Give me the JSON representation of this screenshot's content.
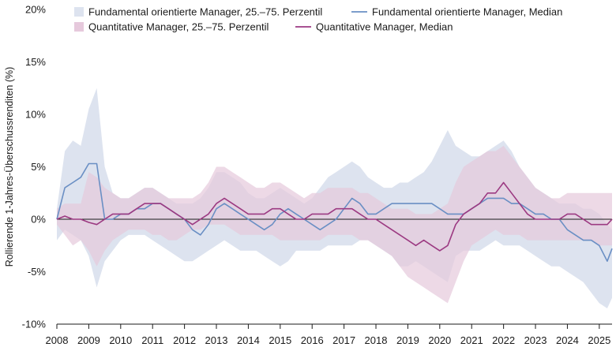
{
  "chart_data": {
    "type": "area",
    "title": "",
    "xlabel": "",
    "ylabel": "Rollierende 1-Jahres-Überschussrenditen (%)",
    "xlim": [
      2008.0,
      2025.4
    ],
    "ylim": [
      -10,
      20
    ],
    "yticks": [
      {
        "value": 20,
        "label": "20%"
      },
      {
        "value": 15,
        "label": "15%"
      },
      {
        "value": 10,
        "label": "10%"
      },
      {
        "value": 5,
        "label": "5%"
      },
      {
        "value": 0,
        "label": "0%"
      },
      {
        "value": -5,
        "label": "-5%"
      },
      {
        "value": -10,
        "label": "-10%"
      }
    ],
    "xticks": [
      {
        "value": 2008,
        "label": "2008"
      },
      {
        "value": 2009,
        "label": "2009"
      },
      {
        "value": 2010,
        "label": "2010"
      },
      {
        "value": 2011,
        "label": "2011"
      },
      {
        "value": 2012,
        "label": "2012"
      },
      {
        "value": 2013,
        "label": "2013"
      },
      {
        "value": 2014,
        "label": "2014"
      },
      {
        "value": 2015,
        "label": "2015"
      },
      {
        "value": 2016,
        "label": "2016"
      },
      {
        "value": 2017,
        "label": "2017"
      },
      {
        "value": 2018,
        "label": "2018"
      },
      {
        "value": 2019,
        "label": "2019"
      },
      {
        "value": 2020,
        "label": "2020"
      },
      {
        "value": 2021,
        "label": "2021"
      },
      {
        "value": 2022,
        "label": "2022"
      },
      {
        "value": 2023,
        "label": "2023"
      },
      {
        "value": 2024,
        "label": "2024"
      },
      {
        "value": 2025,
        "label": "2025"
      }
    ],
    "grid": false,
    "legend_position": "top",
    "legend": [
      {
        "label": "Fundamental orientierte Manager, 25.–75. Perzentil",
        "kind": "band",
        "color": "#dde3ef"
      },
      {
        "label": "Fundamental orientierte Manager, Median",
        "kind": "line",
        "color": "#6a8fc4"
      },
      {
        "label": "Quantitative Manager, 25.–75. Perzentil",
        "kind": "band",
        "color": "#e6c9dc"
      },
      {
        "label": "Quantitative Manager, Median",
        "kind": "line",
        "color": "#9c3a82"
      }
    ],
    "x": [
      2008.0,
      2008.25,
      2008.5,
      2008.75,
      2009.0,
      2009.25,
      2009.5,
      2009.75,
      2010.0,
      2010.25,
      2010.5,
      2010.75,
      2011.0,
      2011.25,
      2011.5,
      2011.75,
      2012.0,
      2012.25,
      2012.5,
      2012.75,
      2013.0,
      2013.25,
      2013.5,
      2013.75,
      2014.0,
      2014.25,
      2014.5,
      2014.75,
      2015.0,
      2015.25,
      2015.5,
      2015.75,
      2016.0,
      2016.25,
      2016.5,
      2016.75,
      2017.0,
      2017.25,
      2017.5,
      2017.75,
      2018.0,
      2018.25,
      2018.5,
      2018.75,
      2019.0,
      2019.25,
      2019.5,
      2019.75,
      2020.0,
      2020.25,
      2020.5,
      2020.75,
      2021.0,
      2021.25,
      2021.5,
      2021.75,
      2022.0,
      2022.25,
      2022.5,
      2022.75,
      2023.0,
      2023.25,
      2023.5,
      2023.75,
      2024.0,
      2024.25,
      2024.5,
      2024.75,
      2025.0,
      2025.25,
      2025.4
    ],
    "series": [
      {
        "name": "Fundamental orientierte Manager, 25.–75. Perzentil",
        "kind": "band",
        "color": "#dde3ef",
        "upper": [
          1.0,
          6.5,
          7.5,
          7.0,
          10.5,
          12.5,
          5.0,
          2.5,
          2.0,
          2.0,
          2.5,
          3.0,
          3.0,
          2.5,
          2.0,
          1.5,
          1.5,
          1.5,
          2.0,
          3.0,
          4.5,
          4.5,
          4.0,
          3.5,
          2.5,
          2.0,
          2.0,
          2.5,
          3.0,
          2.5,
          2.0,
          1.5,
          2.0,
          3.0,
          4.0,
          4.5,
          5.0,
          5.5,
          5.0,
          4.0,
          3.5,
          3.0,
          3.0,
          3.5,
          3.5,
          4.0,
          4.5,
          5.5,
          7.0,
          8.5,
          7.0,
          6.5,
          6.0,
          6.0,
          6.5,
          7.0,
          7.5,
          6.5,
          5.0,
          4.0,
          3.0,
          2.5,
          2.0,
          1.5,
          1.5,
          1.5,
          1.0,
          1.0,
          0.5,
          -0.5,
          -1.0
        ],
        "lower": [
          -2.0,
          -1.0,
          -1.5,
          -2.0,
          -3.5,
          -6.5,
          -4.0,
          -3.0,
          -2.0,
          -1.5,
          -1.5,
          -1.5,
          -2.0,
          -2.5,
          -3.0,
          -3.5,
          -4.0,
          -4.0,
          -3.5,
          -3.0,
          -2.5,
          -2.0,
          -2.5,
          -3.0,
          -3.0,
          -3.0,
          -3.5,
          -4.0,
          -4.5,
          -4.0,
          -3.0,
          -3.0,
          -3.0,
          -3.0,
          -2.5,
          -2.5,
          -2.5,
          -2.5,
          -2.0,
          -2.0,
          -2.5,
          -3.0,
          -3.5,
          -4.5,
          -4.5,
          -4.0,
          -4.5,
          -5.0,
          -5.5,
          -6.0,
          -3.5,
          -3.0,
          -3.0,
          -3.0,
          -2.5,
          -2.0,
          -2.5,
          -2.5,
          -2.5,
          -3.0,
          -3.5,
          -4.0,
          -4.5,
          -4.5,
          -5.0,
          -5.5,
          -6.0,
          -7.0,
          -8.0,
          -8.5,
          -7.5
        ]
      },
      {
        "name": "Quantitative Manager, 25.–75. Perzentil",
        "kind": "band",
        "color": "#e6c9dc",
        "upper": [
          1.0,
          1.5,
          1.5,
          1.5,
          4.5,
          4.0,
          3.0,
          2.5,
          2.0,
          2.0,
          2.5,
          3.0,
          3.0,
          2.5,
          2.0,
          2.0,
          2.0,
          2.0,
          2.5,
          3.5,
          5.0,
          5.0,
          4.5,
          4.0,
          3.5,
          3.0,
          3.0,
          3.5,
          3.5,
          3.0,
          2.5,
          2.0,
          2.5,
          2.5,
          3.0,
          3.0,
          3.0,
          3.0,
          2.5,
          2.5,
          2.0,
          1.5,
          1.0,
          1.0,
          1.0,
          0.5,
          0.5,
          0.5,
          1.0,
          1.5,
          3.5,
          5.0,
          5.5,
          6.0,
          6.5,
          6.5,
          7.0,
          6.0,
          5.0,
          4.0,
          3.0,
          2.5,
          2.0,
          2.0,
          2.5,
          2.5,
          2.5,
          2.5,
          2.5,
          2.5,
          2.5
        ],
        "lower": [
          -0.5,
          -1.5,
          -2.5,
          -2.0,
          -3.0,
          -4.5,
          -3.0,
          -2.0,
          -1.5,
          -1.0,
          -1.0,
          -1.0,
          -1.5,
          -1.5,
          -2.0,
          -2.0,
          -1.5,
          -1.0,
          -1.0,
          -0.5,
          -0.5,
          -0.5,
          -1.0,
          -1.5,
          -1.5,
          -1.5,
          -1.5,
          -1.5,
          -2.0,
          -2.0,
          -2.0,
          -2.0,
          -2.0,
          -2.0,
          -1.5,
          -1.5,
          -1.5,
          -1.5,
          -2.0,
          -2.0,
          -2.5,
          -3.0,
          -3.5,
          -4.5,
          -5.5,
          -6.0,
          -6.5,
          -7.0,
          -7.5,
          -8.0,
          -6.0,
          -4.0,
          -2.5,
          -2.0,
          -1.5,
          -1.0,
          -1.5,
          -1.5,
          -1.5,
          -2.0,
          -2.0,
          -2.0,
          -2.0,
          -2.0,
          -2.0,
          -2.0,
          -2.0,
          -2.0,
          -2.5,
          -2.5,
          -2.5
        ]
      },
      {
        "name": "Fundamental orientierte Manager, Median",
        "kind": "line",
        "color": "#6a8fc4",
        "values": [
          0.0,
          3.0,
          3.5,
          4.0,
          5.3,
          5.3,
          0.0,
          0.0,
          0.5,
          0.5,
          1.0,
          1.0,
          1.5,
          1.5,
          1.0,
          0.5,
          0.0,
          -1.0,
          -1.5,
          -0.5,
          1.0,
          1.5,
          1.0,
          0.5,
          0.0,
          -0.5,
          -1.0,
          -0.5,
          0.5,
          1.0,
          0.5,
          0.0,
          -0.5,
          -1.0,
          -0.5,
          0.0,
          1.0,
          2.0,
          1.5,
          0.5,
          0.5,
          1.0,
          1.5,
          1.5,
          1.5,
          1.5,
          1.5,
          1.5,
          1.0,
          0.5,
          0.5,
          0.5,
          1.0,
          1.5,
          2.0,
          2.0,
          2.0,
          1.5,
          1.5,
          1.0,
          0.5,
          0.5,
          0.0,
          0.0,
          -1.0,
          -1.5,
          -2.0,
          -2.0,
          -2.5,
          -4.0,
          -2.8
        ]
      },
      {
        "name": "Quantitative Manager, Median",
        "kind": "line",
        "color": "#9c3a82",
        "values": [
          0.0,
          0.3,
          0.0,
          0.0,
          -0.3,
          -0.5,
          0.0,
          0.5,
          0.5,
          0.5,
          1.0,
          1.5,
          1.5,
          1.5,
          1.0,
          0.5,
          0.0,
          -0.5,
          0.0,
          0.5,
          1.5,
          2.0,
          1.5,
          1.0,
          0.5,
          0.5,
          0.5,
          1.0,
          1.0,
          0.5,
          0.0,
          0.0,
          0.5,
          0.5,
          0.5,
          1.0,
          1.0,
          1.0,
          0.5,
          0.0,
          0.0,
          -0.5,
          -1.0,
          -1.5,
          -2.0,
          -2.5,
          -2.0,
          -2.5,
          -3.0,
          -2.5,
          -0.5,
          0.5,
          1.0,
          1.5,
          2.5,
          2.5,
          3.5,
          2.5,
          1.5,
          0.5,
          0.0,
          0.0,
          0.0,
          0.0,
          0.5,
          0.5,
          0.0,
          -0.5,
          -0.5,
          -0.5,
          0.0
        ]
      }
    ]
  }
}
